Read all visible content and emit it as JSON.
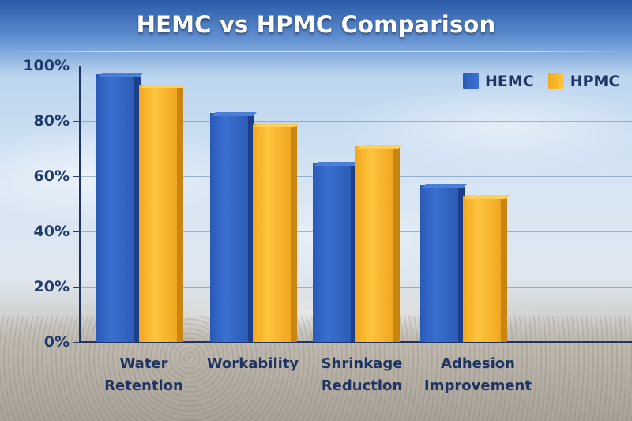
{
  "title": "HEMC vs HPMC Comparison",
  "legend": [
    {
      "label": "HEMC",
      "color": "#2f63c4"
    },
    {
      "label": "HPMC",
      "color": "#fbb52c"
    }
  ],
  "y_ticks": [
    "0%",
    "20%",
    "40%",
    "60%",
    "80%",
    "100%"
  ],
  "categories_display": [
    {
      "line1": "Water",
      "line2": "Retention"
    },
    {
      "line1": "Workability",
      "line2": ""
    },
    {
      "line1": "Shrinkage",
      "line2": "Reduction"
    },
    {
      "line1": "Adhesion",
      "line2": "Improvement"
    }
  ],
  "chart_data": {
    "type": "bar",
    "title": "HEMC vs HPMC Comparison",
    "categories": [
      "Water Retention",
      "Workability",
      "Shrinkage Reduction",
      "Adhesion Improvement"
    ],
    "series": [
      {
        "name": "HEMC",
        "color": "#2f63c4",
        "values": [
          97,
          83,
          65,
          57
        ]
      },
      {
        "name": "HPMC",
        "color": "#fbb52c",
        "values": [
          93,
          79,
          71,
          53
        ]
      }
    ],
    "xlabel": "",
    "ylabel": "",
    "ylim": [
      0,
      100
    ],
    "y_tick_format": "percent",
    "grid": true,
    "legend_position": "top-right"
  }
}
